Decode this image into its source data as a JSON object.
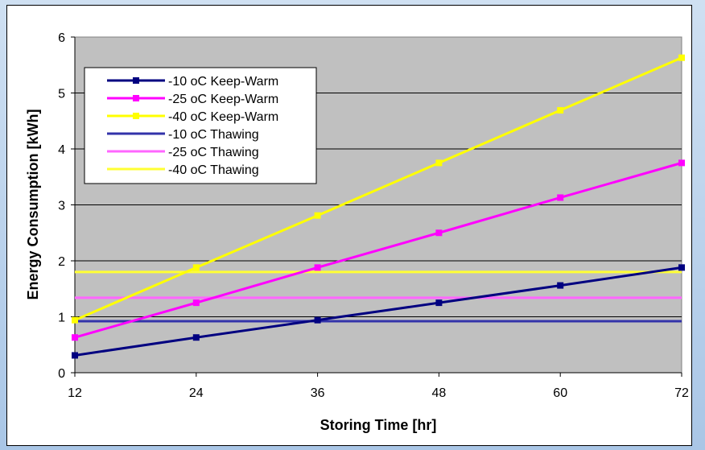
{
  "chart_data": {
    "type": "line",
    "xlabel": "Storing Time [hr]",
    "ylabel": "Energy Consumption [kWh]",
    "x": [
      12,
      24,
      36,
      48,
      60,
      72
    ],
    "xlim": [
      12,
      72
    ],
    "ylim": [
      0,
      6
    ],
    "yticks": [
      "0",
      "1",
      "2",
      "3",
      "4",
      "5",
      "6"
    ],
    "xticks": [
      "12",
      "24",
      "36",
      "48",
      "60",
      "72"
    ],
    "grid": "horizontal",
    "plot_background": "#c0c0c0",
    "legend_position": "top-left",
    "series": [
      {
        "name": "-10 oC Keep-Warm",
        "color": "#000080",
        "marker": "square",
        "values": [
          0.31,
          0.63,
          0.94,
          1.25,
          1.56,
          1.88
        ]
      },
      {
        "name": "-25 oC Keep-Warm",
        "color": "#ff00ff",
        "marker": "square",
        "values": [
          0.63,
          1.25,
          1.88,
          2.5,
          3.13,
          3.75
        ]
      },
      {
        "name": "-40 oC Keep-Warm",
        "color": "#ffff00",
        "marker": "square",
        "values": [
          0.94,
          1.88,
          2.81,
          3.75,
          4.69,
          5.63
        ]
      },
      {
        "name": "-10 oC Thawing",
        "color": "#3333aa",
        "marker": "none",
        "values": [
          0.92,
          0.92,
          0.92,
          0.92,
          0.92,
          0.92
        ]
      },
      {
        "name": "-25 oC Thawing",
        "color": "#ff66ff",
        "marker": "none",
        "values": [
          1.34,
          1.34,
          1.34,
          1.34,
          1.34,
          1.34
        ]
      },
      {
        "name": "-40 oC Thawing",
        "color": "#ffff33",
        "marker": "none",
        "values": [
          1.8,
          1.8,
          1.8,
          1.8,
          1.8,
          1.8
        ]
      }
    ]
  }
}
